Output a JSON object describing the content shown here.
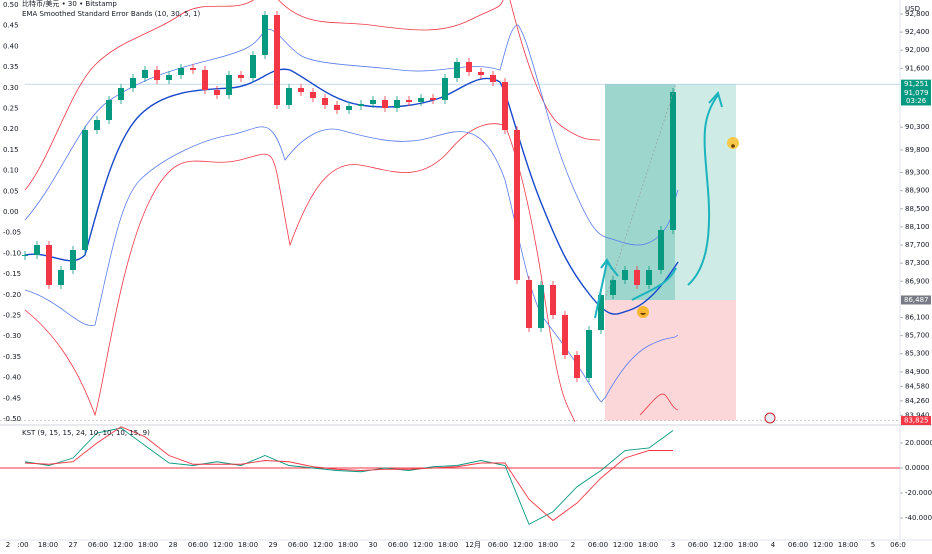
{
  "header": {
    "symbol": "比特币/美元 • 30 • Bitstamp",
    "indicator": "EMA Smoothed Standard Error Bands (10, 30, 5, 1)",
    "kst_legend": "KST (9, 15, 15, 24, 10, 10, 10, 15, 9)"
  },
  "price_axis": {
    "unit": "USD",
    "ylim": [
      83727,
      93109
    ],
    "ticks": [
      {
        "value": 92800,
        "label": "92,800"
      },
      {
        "value": 92400,
        "label": "92,400"
      },
      {
        "value": 92000,
        "label": "92,000"
      },
      {
        "value": 91600,
        "label": "91,600"
      },
      {
        "value": 90300,
        "label": "90,300"
      },
      {
        "value": 89800,
        "label": "89,800"
      },
      {
        "value": 89300,
        "label": "89,300"
      },
      {
        "value": 88900,
        "label": "88,900"
      },
      {
        "value": 88500,
        "label": "88,500"
      },
      {
        "value": 88100,
        "label": "88,100"
      },
      {
        "value": 87700,
        "label": "87,700"
      },
      {
        "value": 87300,
        "label": "87,300"
      },
      {
        "value": 86900,
        "label": "86,900"
      },
      {
        "value": 86100,
        "label": "86,100"
      },
      {
        "value": 85700,
        "label": "85,700"
      },
      {
        "value": 85300,
        "label": "85,300"
      },
      {
        "value": 84900,
        "label": "84,900"
      },
      {
        "value": 84580,
        "label": "84,580"
      },
      {
        "value": 84260,
        "label": "84,260"
      },
      {
        "value": 83940,
        "label": "83,940"
      }
    ]
  },
  "band_axis": {
    "labels": [
      "0.50",
      "0.45",
      "0.40",
      "0.35",
      "0.30",
      "0.25",
      "0.20",
      "0.15",
      "0.10",
      "0.05",
      "0.00",
      "-0.05",
      "-0.10",
      "-0.15",
      "-0.20",
      "-0.25",
      "-0.30",
      "-0.35",
      "-0.40",
      "-0.45",
      "-0.50"
    ]
  },
  "candles": {
    "up_color": "#089981",
    "down_color": "#f23645",
    "closes": [
      87480,
      87700,
      86818,
      87149,
      87590,
      90239,
      90460,
      90902,
      91166,
      91387,
      91564,
      91343,
      91453,
      91608,
      91564,
      91122,
      91012,
      91453,
      91387,
      91895,
      92778,
      90791,
      91166,
      91078,
      90946,
      90791,
      90681,
      90769,
      90813,
      90902,
      90725,
      90902,
      90857,
      90946,
      90902,
      91387,
      91740,
      91520,
      91453,
      91299,
      90239,
      86928,
      85868,
      86818,
      86155,
      85272,
      84765,
      85824,
      86597,
      86928,
      87149,
      86818,
      87149,
      88032,
      91079
    ]
  },
  "position": {
    "target": 91251,
    "entry": 86487,
    "stop": 83825
  },
  "price_tags": [
    {
      "value": 91251,
      "label": "91,251",
      "color": "#089981"
    },
    {
      "value": 91079,
      "label": "91,079",
      "color": "#089981"
    },
    {
      "value": 86487,
      "label": "86,487",
      "color": "#787b86"
    },
    {
      "value": 83825,
      "label": "83,825",
      "color": "#f23645"
    }
  ],
  "countdown": "03:26",
  "kst": {
    "ylim": [
      -57.6,
      32
    ],
    "ticks": [
      {
        "value": 20,
        "label": "20.0000"
      },
      {
        "value": 0,
        "label": "0.0000"
      },
      {
        "value": -20,
        "label": "-20.0000"
      },
      {
        "value": -40,
        "label": "-40.0000"
      }
    ],
    "kst": [
      5,
      2,
      8,
      28,
      32,
      18,
      4,
      2,
      5,
      2,
      10,
      2,
      0,
      -2,
      -3,
      0,
      -2,
      1,
      2,
      6,
      2,
      -45,
      -35,
      -15,
      -2,
      14,
      16,
      30
    ],
    "signal": [
      4,
      3,
      5,
      20,
      33,
      25,
      10,
      3,
      3,
      3,
      6,
      5,
      1,
      -1,
      -2,
      -1,
      -1,
      0,
      1,
      4,
      4,
      -25,
      -42,
      -28,
      -8,
      8,
      14,
      14
    ]
  },
  "time_axis": {
    "first": "2",
    "labels": [
      ":00",
      "18:00",
      "27",
      "06:00",
      "12:00",
      "18:00",
      "28",
      "06:00",
      "12:00",
      "18:00",
      "29",
      "06:00",
      "12:00",
      "18:00",
      "30",
      "06:00",
      "12:00",
      "18:00",
      "12月",
      "06:00",
      "12:00",
      "18:00",
      "2",
      "06:00",
      "12:00",
      "18:00",
      "3",
      "06:00",
      "12:00",
      "18:00",
      "4",
      "06:00",
      "12:00",
      "18:00",
      "5",
      "06:0"
    ]
  }
}
